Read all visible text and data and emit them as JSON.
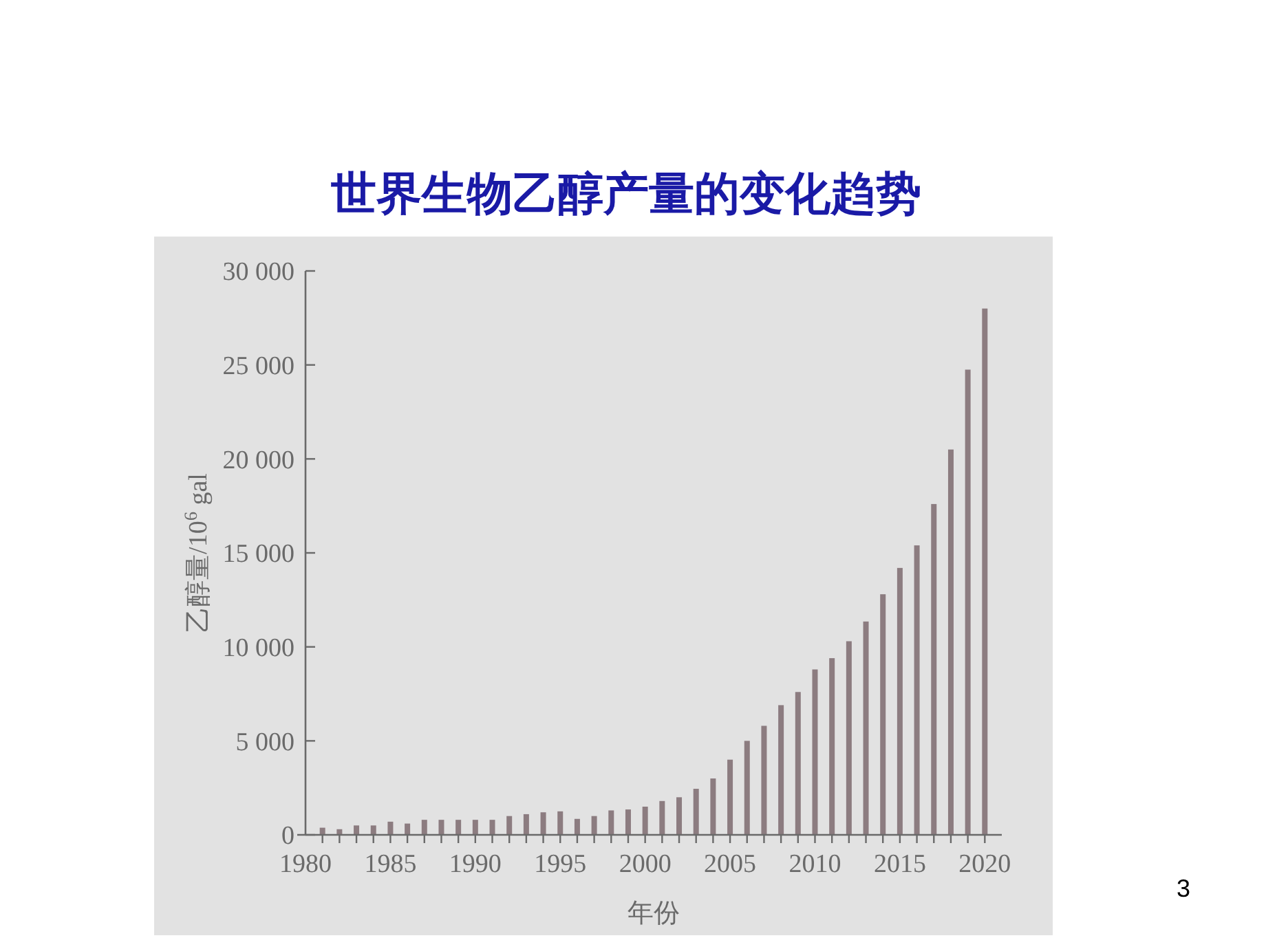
{
  "chart_data": {
    "type": "bar",
    "title": "世界生物乙醇产量的变化趋势",
    "xlabel": "年份",
    "ylabel": "乙醇量/10$^{6}$ gal",
    "x": [
      1981,
      1982,
      1983,
      1984,
      1985,
      1986,
      1987,
      1988,
      1989,
      1990,
      1991,
      1992,
      1993,
      1994,
      1995,
      1996,
      1997,
      1998,
      1999,
      2000,
      2001,
      2002,
      2003,
      2004,
      2005,
      2006,
      2007,
      2008,
      2009,
      2010,
      2011,
      2012,
      2013,
      2014,
      2015,
      2016,
      2017,
      2018,
      2019,
      2020
    ],
    "values": [
      380,
      300,
      500,
      500,
      700,
      600,
      800,
      800,
      800,
      800,
      800,
      1000,
      1100,
      1200,
      1250,
      850,
      1000,
      1300,
      1350,
      1500,
      1800,
      2000,
      2450,
      3000,
      4000,
      5000,
      5800,
      6900,
      7600,
      8800,
      9400,
      10300,
      11350,
      12800,
      14200,
      15400,
      17600,
      20500,
      24750,
      28000
    ],
    "color": "#8c7c80",
    "xlim": [
      1980,
      2021
    ],
    "xticks": [
      1980,
      1985,
      1990,
      1995,
      2000,
      2005,
      2010,
      2015,
      2020
    ],
    "ylim": [
      0,
      30000
    ],
    "yticks": [
      0,
      {
        "value": 5000,
        "label": "5 000"
      },
      {
        "value": 10000,
        "label": "10 000"
      },
      {
        "value": 15000,
        "label": "15 000"
      },
      {
        "value": 20000,
        "label": "20 000"
      },
      {
        "value": 25000,
        "label": "25 000"
      },
      {
        "value": 30000,
        "label": "30 000"
      }
    ],
    "grid": false,
    "annotations": [
      "3"
    ]
  }
}
